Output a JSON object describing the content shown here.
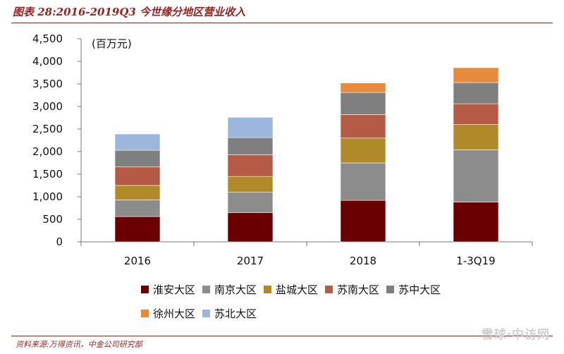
{
  "header": {
    "title": "图表 28:2016-2019Q3 今世缘分地区营业收入"
  },
  "footer": {
    "source": "资料来源:万得资讯，中金公司研究部"
  },
  "watermark": {
    "text": "雪球·中访网"
  },
  "chart_data": {
    "type": "bar",
    "stacked": true,
    "title": "",
    "unit_label": "(百万元)",
    "xlabel": "",
    "ylabel": "",
    "ylim": [
      0,
      4500
    ],
    "yticks": [
      0,
      500,
      1000,
      1500,
      2000,
      2500,
      3000,
      3500,
      4000,
      4500
    ],
    "ytick_labels": [
      "0",
      "500",
      "1,000",
      "1,500",
      "2,000",
      "2,500",
      "3,000",
      "3,500",
      "4,000",
      "4,500"
    ],
    "grid": false,
    "legend_position": "bottom",
    "categories": [
      "2016",
      "2017",
      "2018",
      "1-3Q19"
    ],
    "series": [
      {
        "name": "淮安大区",
        "color": "#6b0000",
        "values": [
          560,
          650,
          920,
          880
        ]
      },
      {
        "name": "南京大区",
        "color": "#8c8c8c",
        "values": [
          370,
          450,
          830,
          1160
        ]
      },
      {
        "name": "盐城大区",
        "color": "#b08a28",
        "values": [
          320,
          350,
          550,
          560
        ]
      },
      {
        "name": "苏南大区",
        "color": "#b55a44",
        "values": [
          410,
          480,
          520,
          460
        ]
      },
      {
        "name": "苏中大区",
        "color": "#7f7f7f",
        "values": [
          370,
          380,
          490,
          470
        ]
      },
      {
        "name": "徐州大区",
        "color": "#e68a3c",
        "values": [
          0,
          0,
          210,
          330
        ]
      },
      {
        "name": "苏北大区",
        "color": "#9db6de",
        "values": [
          360,
          450,
          0,
          0
        ]
      }
    ]
  }
}
